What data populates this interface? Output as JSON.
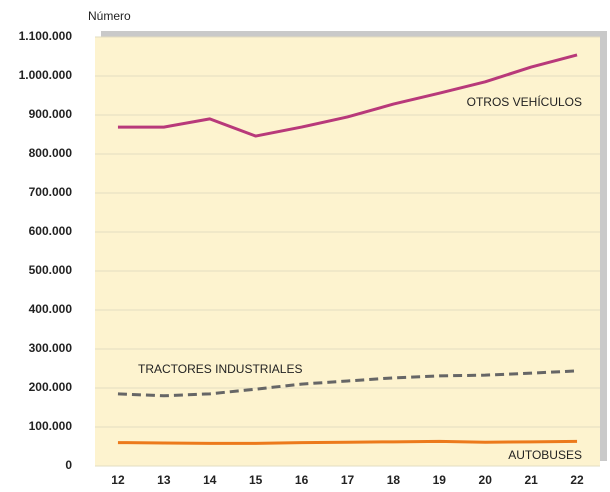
{
  "chart_data": {
    "type": "line",
    "y_label": "Número",
    "categories": [
      "12",
      "13",
      "14",
      "15",
      "16",
      "17",
      "18",
      "19",
      "20",
      "21",
      "22"
    ],
    "series": [
      {
        "name": "OTROS VEHÍCULOS",
        "color": "#b8397a",
        "dash": false,
        "values": [
          869000,
          869000,
          890000,
          846000,
          869000,
          895000,
          928000,
          956000,
          985000,
          1023000,
          1054000
        ]
      },
      {
        "name": "TRACTORES INDUSTRIALES",
        "color": "#666666",
        "dash": true,
        "values": [
          185000,
          180000,
          185000,
          197000,
          210000,
          218000,
          226000,
          231000,
          233000,
          238000,
          244000
        ]
      },
      {
        "name": "AUTOBUSES",
        "color": "#ec7a1c",
        "dash": false,
        "values": [
          60000,
          59000,
          58000,
          58000,
          60000,
          61000,
          62000,
          63000,
          61000,
          62000,
          63000
        ]
      }
    ],
    "ylim": [
      0,
      1100000
    ],
    "yticks": [
      0,
      {
        "value": 100000,
        "label": "100.000"
      },
      {
        "value": 200000,
        "label": "200.000"
      },
      {
        "value": 300000,
        "label": "300.000"
      },
      {
        "value": 400000,
        "label": "400.000"
      },
      {
        "value": 500000,
        "label": "500.000"
      },
      {
        "value": 600000,
        "label": "600.000"
      },
      {
        "value": 700000,
        "label": "700.000"
      },
      {
        "value": 800000,
        "label": "800.000"
      },
      {
        "value": 900000,
        "label": "900.000"
      },
      {
        "value": 1000000,
        "label": "1.000.000"
      },
      {
        "value": 1100000,
        "label": "1.100.000"
      }
    ],
    "grid": true
  }
}
